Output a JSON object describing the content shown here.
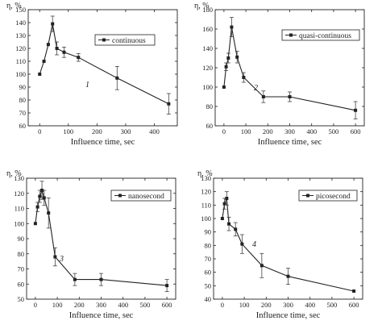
{
  "chart_data": [
    {
      "type": "line",
      "ylabel": "η, %",
      "xlabel": "Influence time, sec",
      "xlim": [
        -40,
        480
      ],
      "ylim": [
        60,
        150
      ],
      "xticks": [
        0,
        100,
        200,
        300,
        400
      ],
      "yticks": [
        60,
        70,
        80,
        90,
        100,
        110,
        120,
        130,
        140,
        150
      ],
      "legend": "continuous",
      "legend_position": "top-right",
      "annotation": "1",
      "series": [
        {
          "x": [
            0,
            15,
            30,
            45,
            60,
            85,
            135,
            270,
            450
          ],
          "y": [
            100,
            110,
            123,
            139,
            120,
            117,
            113,
            97,
            77
          ],
          "err": [
            0,
            0,
            0,
            6,
            5,
            4,
            3,
            9,
            8
          ]
        }
      ]
    },
    {
      "type": "line",
      "ylabel": "η, %",
      "xlabel": "Influence time, sec",
      "xlim": [
        -40,
        640
      ],
      "ylim": [
        60,
        180
      ],
      "xticks": [
        0,
        100,
        200,
        300,
        400,
        500,
        600
      ],
      "yticks": [
        60,
        80,
        100,
        120,
        140,
        160,
        180
      ],
      "legend": "quasi-continuous",
      "legend_position": "top-right",
      "annotation": "2",
      "series": [
        {
          "x": [
            0,
            10,
            20,
            35,
            60,
            90,
            180,
            300,
            600
          ],
          "y": [
            100,
            121,
            130,
            162,
            131,
            110,
            90,
            90,
            76
          ],
          "err": [
            0,
            4,
            5,
            10,
            6,
            5,
            6,
            5,
            9
          ]
        }
      ]
    },
    {
      "type": "line",
      "ylabel": "η, %",
      "xlabel": "Influence time, sec",
      "xlim": [
        -40,
        640
      ],
      "ylim": [
        50,
        130
      ],
      "xticks": [
        0,
        100,
        200,
        300,
        400,
        500,
        600
      ],
      "yticks": [
        50,
        60,
        70,
        80,
        90,
        100,
        110,
        120,
        130
      ],
      "legend": "nanosecond",
      "legend_position": "top-right",
      "annotation": "3",
      "series": [
        {
          "x": [
            0,
            10,
            20,
            30,
            40,
            60,
            90,
            180,
            300,
            600
          ],
          "y": [
            100,
            111,
            118,
            122,
            117,
            107,
            78,
            63,
            63,
            59
          ],
          "err": [
            0,
            3,
            4,
            6,
            5,
            10,
            6,
            4,
            4,
            4
          ]
        }
      ]
    },
    {
      "type": "line",
      "ylabel": "η, %",
      "xlabel": "Influence time, sec",
      "xlim": [
        -40,
        640
      ],
      "ylim": [
        40,
        130
      ],
      "xticks": [
        0,
        100,
        200,
        300,
        400,
        500,
        600
      ],
      "yticks": [
        40,
        50,
        60,
        70,
        80,
        90,
        100,
        110,
        120,
        130
      ],
      "legend": "picosecond",
      "legend_position": "top-right",
      "annotation": "4",
      "series": [
        {
          "x": [
            0,
            10,
            20,
            30,
            60,
            90,
            180,
            300,
            600
          ],
          "y": [
            100,
            111,
            115,
            96,
            92,
            81,
            65,
            57,
            46
          ],
          "err": [
            0,
            4,
            5,
            5,
            5,
            7,
            9,
            6,
            0
          ]
        }
      ]
    }
  ]
}
